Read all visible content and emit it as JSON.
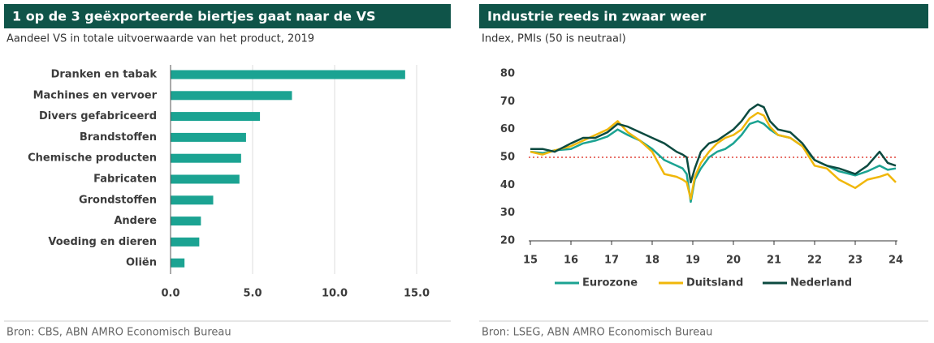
{
  "chart_data": [
    {
      "type": "bar",
      "orientation": "horizontal",
      "title": "1 op de 3 geëxporteerde biertjes gaat naar de VS",
      "subtitle": "Aandeel VS in totale uitvoerwaarde van het product, 2019",
      "source": "Bron: CBS, ABN AMRO Economisch Bureau",
      "categories": [
        "Dranken en tabak",
        "Machines en vervoer",
        "Divers gefabriceerd",
        "Brandstoffen",
        "Chemische producten",
        "Fabricaten",
        "Grondstoffen",
        "Andere",
        "Voeding en dieren",
        "Oliën"
      ],
      "values": [
        14.3,
        7.4,
        5.45,
        4.6,
        4.3,
        4.2,
        2.6,
        1.85,
        1.75,
        0.85
      ],
      "color": "#1ba392",
      "xlim": [
        0,
        15
      ],
      "xticks": [
        {
          "value": 0,
          "label": "0.0"
        },
        {
          "value": 5,
          "label": "5.0"
        },
        {
          "value": 10,
          "label": "10.0"
        },
        {
          "value": 15,
          "label": "15.0"
        }
      ],
      "grid": true
    },
    {
      "type": "line",
      "title": "Industrie reeds in zwaar weer",
      "subtitle": "Index, PMIs (50 is neutraal)",
      "source": "Bron: LSEG, ABN AMRO Economisch Bureau",
      "x": [
        15.0,
        15.3,
        15.6,
        16.0,
        16.3,
        16.6,
        16.9,
        17.15,
        17.4,
        17.7,
        18.0,
        18.3,
        18.6,
        18.75,
        18.85,
        18.95,
        19.05,
        19.2,
        19.4,
        19.6,
        19.8,
        20.0,
        20.2,
        20.4,
        20.6,
        20.75,
        20.9,
        21.1,
        21.4,
        21.7,
        22.0,
        22.3,
        22.6,
        23.0,
        23.3,
        23.6,
        23.8,
        24.0
      ],
      "series": [
        {
          "name": "Eurozone",
          "color": "#1ba392",
          "values": [
            52,
            51.5,
            52.5,
            53,
            55,
            56,
            57.5,
            60,
            58,
            56,
            53,
            49,
            47,
            46,
            44,
            34,
            42,
            46,
            50,
            52,
            53,
            55,
            58,
            62,
            63,
            62,
            60,
            58,
            57,
            54,
            49,
            47,
            45,
            43.5,
            45,
            47,
            45.5,
            46
          ]
        },
        {
          "name": "Duitsland",
          "color": "#f0b70a",
          "values": [
            52,
            51,
            52.5,
            54,
            56,
            58,
            60,
            63,
            59,
            56,
            52,
            44,
            43,
            42,
            41,
            35,
            43,
            48,
            52,
            55,
            57,
            58,
            60,
            64,
            66,
            65,
            61,
            58,
            57,
            54,
            47,
            46,
            42,
            39,
            42,
            43,
            44,
            41
          ]
        },
        {
          "name": "Nederland",
          "color": "#0c4a40",
          "values": [
            53,
            53,
            52,
            55,
            57,
            57,
            59,
            62,
            61,
            59,
            57,
            55,
            52,
            51,
            50,
            41,
            46,
            52,
            55,
            56,
            58,
            60,
            63,
            67,
            69,
            68,
            63,
            60,
            59,
            55,
            49,
            47,
            46,
            44,
            47,
            52,
            48,
            47
          ]
        }
      ],
      "xlim": [
        15,
        24
      ],
      "xticks": [
        15,
        16,
        17,
        18,
        19,
        20,
        21,
        22,
        23,
        24
      ],
      "ylim": [
        20,
        80
      ],
      "yticks": [
        20,
        30,
        40,
        50,
        60,
        70,
        80
      ],
      "reference_line": 50,
      "reference_color": "#e0473c",
      "legend": "bottom"
    }
  ]
}
